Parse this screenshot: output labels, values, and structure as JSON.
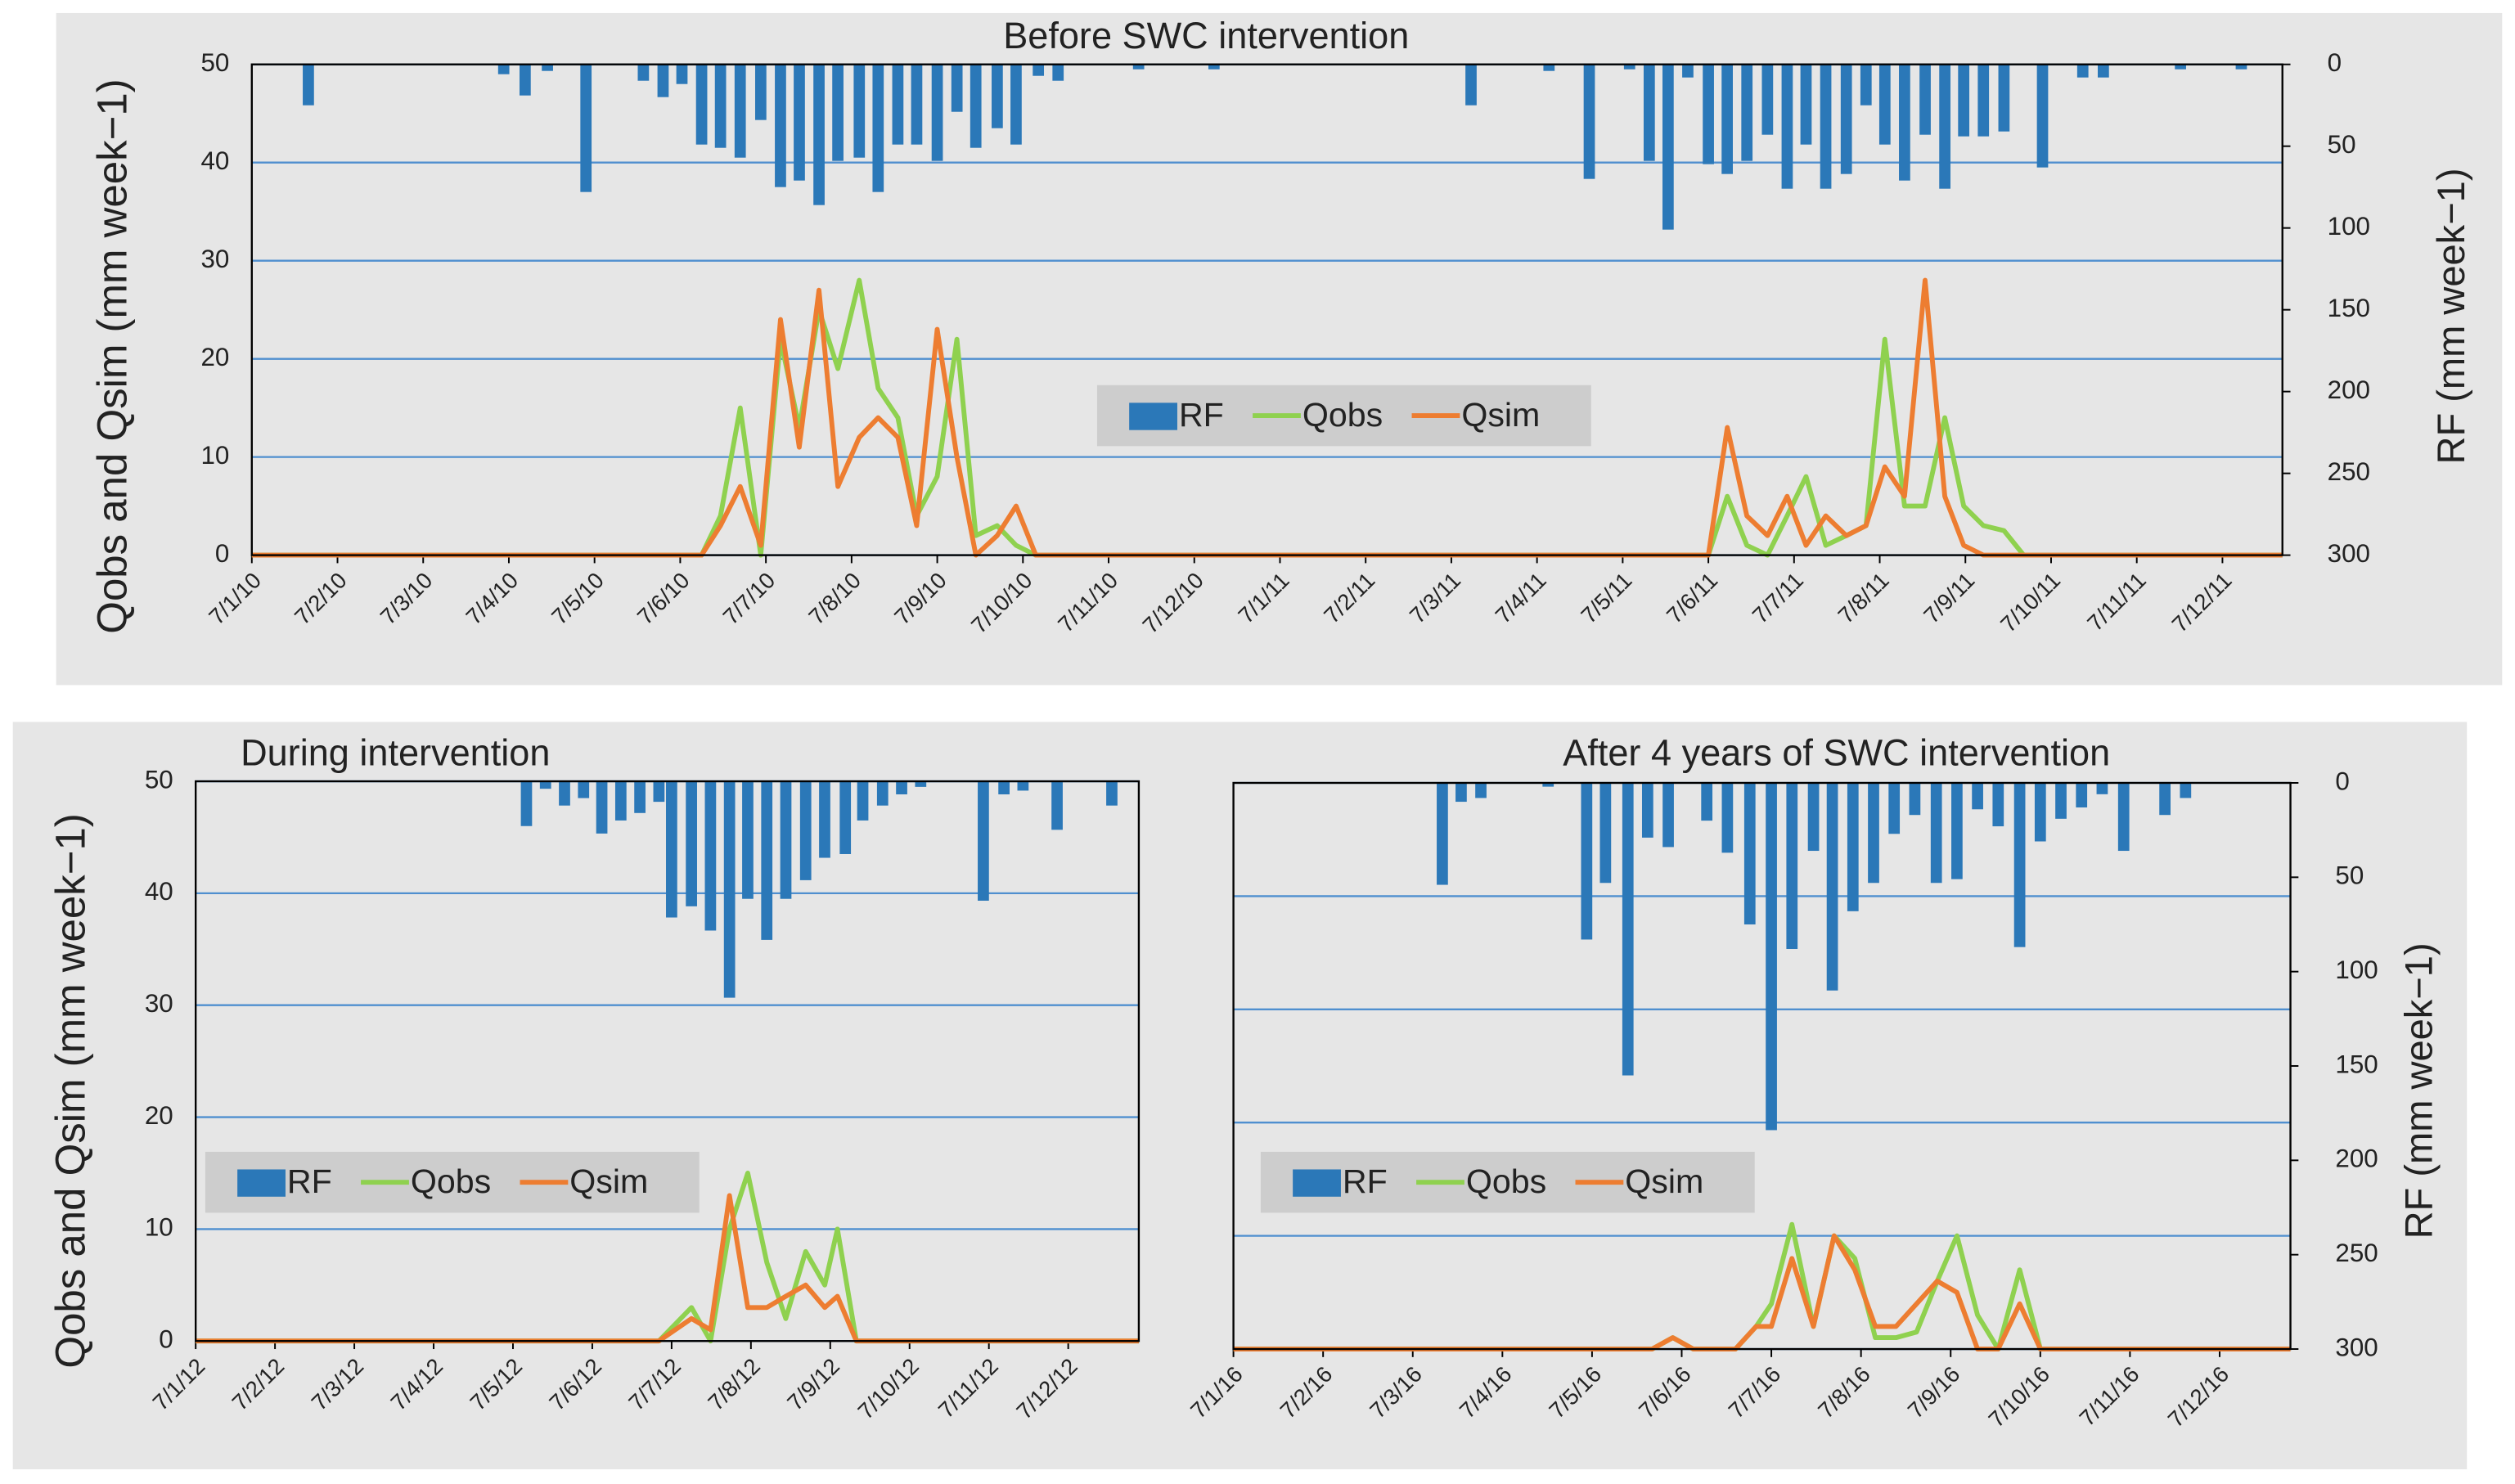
{
  "chart_data": [
    {
      "type": "bar-line",
      "title": "Before SWC intervention",
      "ylabel": "Qobs and Qsim (mm week−1)",
      "y2label": "RF (mm week−1)",
      "xlim": [
        0,
        23.7
      ],
      "xticks": [
        {
          "value": 0,
          "label": "7/1/10"
        },
        {
          "value": 1,
          "label": "7/2/10"
        },
        {
          "value": 2,
          "label": "7/3/10"
        },
        {
          "value": 3,
          "label": "7/4/10"
        },
        {
          "value": 4,
          "label": "7/5/10"
        },
        {
          "value": 5,
          "label": "7/6/10"
        },
        {
          "value": 6,
          "label": "7/7/10"
        },
        {
          "value": 7,
          "label": "7/8/10"
        },
        {
          "value": 8,
          "label": "7/9/10"
        },
        {
          "value": 9,
          "label": "7/10/10"
        },
        {
          "value": 10,
          "label": "7/11/10"
        },
        {
          "value": 11,
          "label": "7/12/10"
        },
        {
          "value": 12,
          "label": "7/1/11"
        },
        {
          "value": 13,
          "label": "7/2/11"
        },
        {
          "value": 14,
          "label": "7/3/11"
        },
        {
          "value": 15,
          "label": "7/4/11"
        },
        {
          "value": 16,
          "label": "7/5/11"
        },
        {
          "value": 17,
          "label": "7/6/11"
        },
        {
          "value": 18,
          "label": "7/7/11"
        },
        {
          "value": 19,
          "label": "7/8/11"
        },
        {
          "value": 20,
          "label": "7/9/11"
        },
        {
          "value": 21,
          "label": "7/10/11"
        },
        {
          "value": 22,
          "label": "7/11/11"
        },
        {
          "value": 23,
          "label": "7/12/11"
        }
      ],
      "ylim": [
        0,
        50
      ],
      "yticks": [
        0,
        10,
        20,
        30,
        40,
        50
      ],
      "y2lim": [
        0,
        300
      ],
      "y2ticks": [
        0,
        50,
        100,
        150,
        200,
        250,
        300
      ],
      "y2_inverted": true,
      "grid": true,
      "legend": "center",
      "series": [
        {
          "name": "RF",
          "type": "bar",
          "axis": "y2",
          "color": "#2b78b8",
          "x": [
            0.66,
            2.94,
            3.19,
            3.45,
            3.9,
            4.57,
            4.8,
            5.02,
            5.25,
            5.47,
            5.7,
            5.94,
            6.17,
            6.39,
            6.62,
            6.84,
            7.09,
            7.31,
            7.54,
            7.76,
            8.0,
            8.23,
            8.45,
            8.7,
            8.92,
            9.18,
            9.41,
            10.35,
            11.23,
            14.23,
            15.14,
            15.61,
            16.08,
            16.31,
            16.53,
            16.76,
            17.0,
            17.22,
            17.45,
            17.69,
            17.92,
            18.14,
            18.37,
            18.61,
            18.84,
            19.06,
            19.29,
            19.53,
            19.76,
            19.98,
            20.21,
            20.45,
            20.9,
            21.37,
            21.61,
            22.51,
            23.22
          ],
          "values": [
            25,
            6,
            19,
            4,
            78,
            10,
            20,
            12,
            49,
            51,
            57,
            34,
            75,
            71,
            86,
            59,
            57,
            78,
            49,
            49,
            59,
            29,
            51,
            39,
            49,
            7,
            10,
            3,
            3,
            25,
            4,
            70,
            3,
            59,
            101,
            8,
            61,
            67,
            59,
            43,
            76,
            49,
            76,
            67,
            25,
            49,
            71,
            43,
            76,
            44,
            44,
            41,
            63,
            8,
            8,
            3,
            3
          ]
        },
        {
          "name": "Qobs",
          "type": "line",
          "color": "#8fd14f",
          "x": [
            0,
            5.25,
            5.47,
            5.7,
            5.94,
            6.17,
            6.39,
            6.62,
            6.84,
            7.09,
            7.31,
            7.54,
            7.76,
            8.0,
            8.23,
            8.45,
            8.7,
            8.92,
            9.15,
            17.0,
            17.22,
            17.45,
            17.69,
            17.92,
            18.14,
            18.37,
            18.61,
            18.84,
            19.06,
            19.29,
            19.53,
            19.76,
            19.98,
            20.21,
            20.45,
            20.68,
            23.7
          ],
          "values": [
            0,
            0,
            4,
            15,
            0,
            22,
            13,
            25,
            19,
            28,
            17,
            14,
            4,
            8,
            22,
            2,
            3,
            1,
            0,
            0,
            6,
            1,
            0,
            4,
            8,
            1,
            2,
            3,
            22,
            5,
            5,
            14,
            5,
            3,
            2.5,
            0,
            0
          ]
        },
        {
          "name": "Qsim",
          "type": "line",
          "color": "#ed7d31",
          "x": [
            0,
            5.25,
            5.47,
            5.7,
            5.94,
            6.17,
            6.39,
            6.62,
            6.84,
            7.09,
            7.31,
            7.54,
            7.76,
            8.0,
            8.23,
            8.45,
            8.7,
            8.92,
            9.15,
            17.0,
            17.22,
            17.45,
            17.69,
            17.92,
            18.14,
            18.37,
            18.61,
            18.84,
            19.06,
            19.29,
            19.53,
            19.76,
            19.98,
            20.21,
            23.7
          ],
          "values": [
            0,
            0,
            3,
            7,
            1,
            24,
            11,
            27,
            7,
            12,
            14,
            12,
            3,
            23,
            10,
            0,
            2,
            5,
            0,
            0,
            13,
            4,
            2,
            6,
            1,
            4,
            2,
            3,
            9,
            6,
            28,
            6,
            1,
            0,
            0
          ]
        }
      ]
    },
    {
      "type": "bar-line",
      "title": "During intervention",
      "ylabel": "Qobs and Qsim (mm week−1)",
      "xlim": [
        0,
        11.89
      ],
      "xticks": [
        {
          "value": 0,
          "label": "7/1/12"
        },
        {
          "value": 1,
          "label": "7/2/12"
        },
        {
          "value": 2,
          "label": "7/3/12"
        },
        {
          "value": 3,
          "label": "7/4/12"
        },
        {
          "value": 4,
          "label": "7/5/12"
        },
        {
          "value": 5,
          "label": "7/6/12"
        },
        {
          "value": 6,
          "label": "7/7/12"
        },
        {
          "value": 7,
          "label": "7/8/12"
        },
        {
          "value": 8,
          "label": "7/9/12"
        },
        {
          "value": 9,
          "label": "7/10/12"
        },
        {
          "value": 10,
          "label": "7/11/12"
        },
        {
          "value": 11,
          "label": "7/12/12"
        }
      ],
      "ylim": [
        0,
        50
      ],
      "yticks": [
        0,
        10,
        20,
        30,
        40,
        50
      ],
      "y2lim": [
        0,
        300
      ],
      "y2_inverted": true,
      "grid": true,
      "legend": "lower left",
      "series": [
        {
          "name": "RF",
          "type": "bar",
          "axis": "y2",
          "color": "#2b78b8",
          "x": [
            4.17,
            4.41,
            4.65,
            4.89,
            5.12,
            5.36,
            5.6,
            5.84,
            6.0,
            6.25,
            6.49,
            6.73,
            6.96,
            7.2,
            7.44,
            7.69,
            7.93,
            8.19,
            8.41,
            8.66,
            8.9,
            9.14,
            9.93,
            10.19,
            10.43,
            10.86,
            11.55
          ],
          "values": [
            24,
            4,
            13,
            9,
            28,
            21,
            17,
            11,
            73,
            67,
            80,
            116,
            63,
            85,
            63,
            53,
            41,
            39,
            21,
            13,
            7,
            3,
            64,
            7,
            5,
            26,
            13
          ]
        },
        {
          "name": "Qobs",
          "type": "line",
          "color": "#8fd14f",
          "x": [
            0,
            5.84,
            6.25,
            6.49,
            6.73,
            6.96,
            7.2,
            7.44,
            7.69,
            7.93,
            8.09,
            8.33,
            11.89
          ],
          "values": [
            0,
            0,
            3,
            0,
            10,
            15,
            7,
            2,
            8,
            5,
            10,
            0,
            0
          ]
        },
        {
          "name": "Qsim",
          "type": "line",
          "color": "#ed7d31",
          "x": [
            0,
            5.84,
            6.25,
            6.49,
            6.73,
            6.96,
            7.2,
            7.44,
            7.69,
            7.93,
            8.09,
            8.33,
            11.89
          ],
          "values": [
            0,
            0,
            2,
            1,
            13,
            3,
            3,
            4,
            5,
            3,
            4,
            0,
            0
          ]
        }
      ]
    },
    {
      "type": "bar-line",
      "title": "After 4 years of SWC intervention",
      "y2label": "RF (mm week−1)",
      "xlim": [
        0,
        11.79
      ],
      "xticks": [
        {
          "value": 0,
          "label": "7/1/16"
        },
        {
          "value": 1,
          "label": "7/2/16"
        },
        {
          "value": 2,
          "label": "7/3/16"
        },
        {
          "value": 3,
          "label": "7/4/16"
        },
        {
          "value": 4,
          "label": "7/5/16"
        },
        {
          "value": 5,
          "label": "7/6/16"
        },
        {
          "value": 6,
          "label": "7/7/16"
        },
        {
          "value": 7,
          "label": "7/8/16"
        },
        {
          "value": 8,
          "label": "7/9/16"
        },
        {
          "value": 9,
          "label": "7/10/16"
        },
        {
          "value": 10,
          "label": "7/11/16"
        },
        {
          "value": 11,
          "label": "7/12/16"
        }
      ],
      "ylim": [
        0,
        50
      ],
      "yticks": [
        0,
        10,
        20,
        30,
        40,
        50
      ],
      "ytick_labels": false,
      "y2lim": [
        0,
        300
      ],
      "y2ticks": [
        0,
        50,
        100,
        150,
        200,
        250,
        300
      ],
      "y2_inverted": true,
      "grid": true,
      "legend": "lower left",
      "series": [
        {
          "name": "RF",
          "type": "bar",
          "axis": "y2",
          "color": "#2b78b8",
          "x": [
            2.33,
            2.54,
            2.76,
            3.51,
            3.94,
            4.15,
            4.4,
            4.62,
            4.85,
            5.28,
            5.51,
            5.76,
            6.0,
            6.23,
            6.47,
            6.68,
            6.91,
            7.14,
            7.37,
            7.6,
            7.84,
            8.07,
            8.3,
            8.53,
            8.77,
            9.0,
            9.23,
            9.46,
            9.69,
            9.93,
            10.39,
            10.62
          ],
          "values": [
            54,
            10,
            8,
            2,
            83,
            53,
            155,
            29,
            34,
            20,
            37,
            75,
            184,
            88,
            36,
            110,
            68,
            53,
            27,
            17,
            53,
            51,
            14,
            23,
            87,
            31,
            19,
            13,
            6,
            36,
            17,
            8
          ]
        },
        {
          "name": "Qobs",
          "type": "line",
          "color": "#8fd14f",
          "x": [
            0,
            4.67,
            4.9,
            5.13,
            5.6,
            5.83,
            6.0,
            6.23,
            6.47,
            6.7,
            6.93,
            7.16,
            7.39,
            7.62,
            7.85,
            8.07,
            8.3,
            8.53,
            8.77,
            9.0,
            11.79
          ],
          "values": [
            0,
            0,
            1,
            0,
            0,
            2,
            4,
            11,
            2,
            10,
            8,
            1,
            1,
            1.5,
            6,
            10,
            3,
            0,
            7,
            0,
            0
          ]
        },
        {
          "name": "Qsim",
          "type": "line",
          "color": "#ed7d31",
          "x": [
            0,
            4.67,
            4.9,
            5.13,
            5.6,
            5.83,
            6.0,
            6.23,
            6.47,
            6.7,
            6.93,
            7.16,
            7.39,
            7.62,
            7.85,
            8.07,
            8.3,
            8.53,
            8.77,
            9.0,
            11.79
          ],
          "values": [
            0,
            0,
            1,
            0,
            0,
            2,
            2,
            8,
            2,
            10,
            7,
            2,
            2,
            4,
            6,
            5,
            0,
            0,
            4,
            0,
            0
          ]
        }
      ]
    }
  ]
}
